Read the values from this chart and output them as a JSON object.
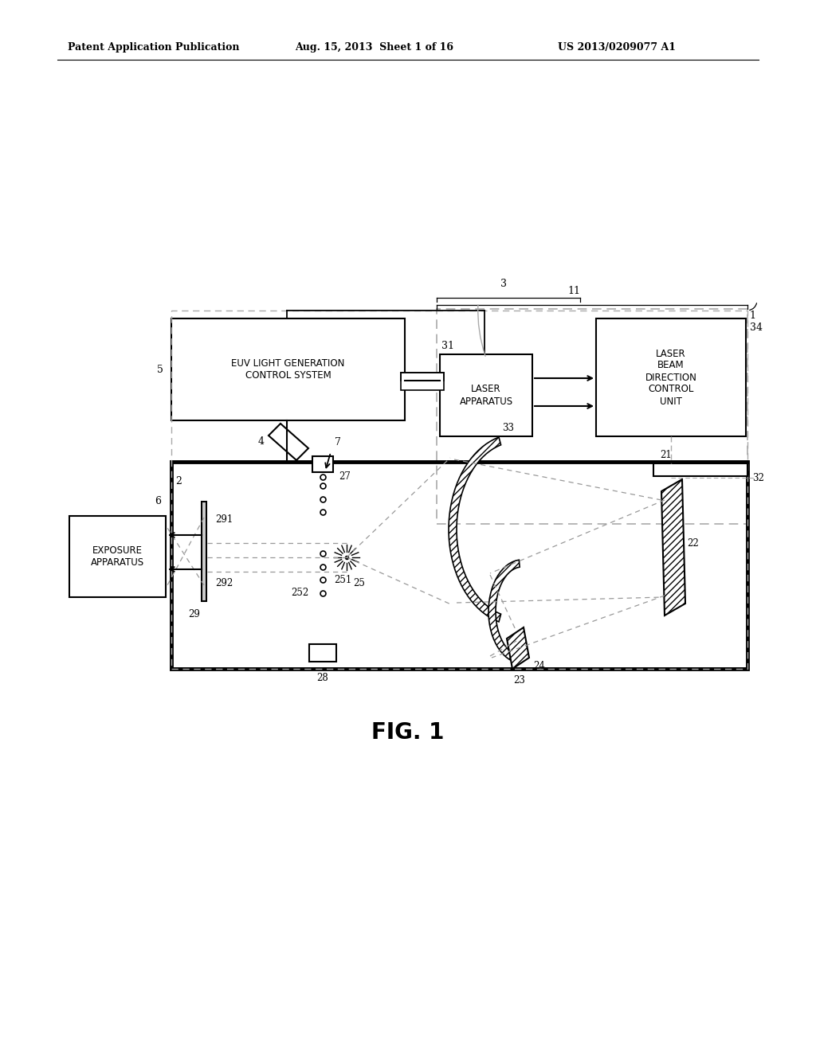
{
  "bg_color": "#ffffff",
  "header_left": "Patent Application Publication",
  "header_center": "Aug. 15, 2013  Sheet 1 of 16",
  "header_right": "US 2013/0209077 A1",
  "figure_label": "FIG. 1",
  "line_color": "#000000",
  "gray_color": "#999999"
}
